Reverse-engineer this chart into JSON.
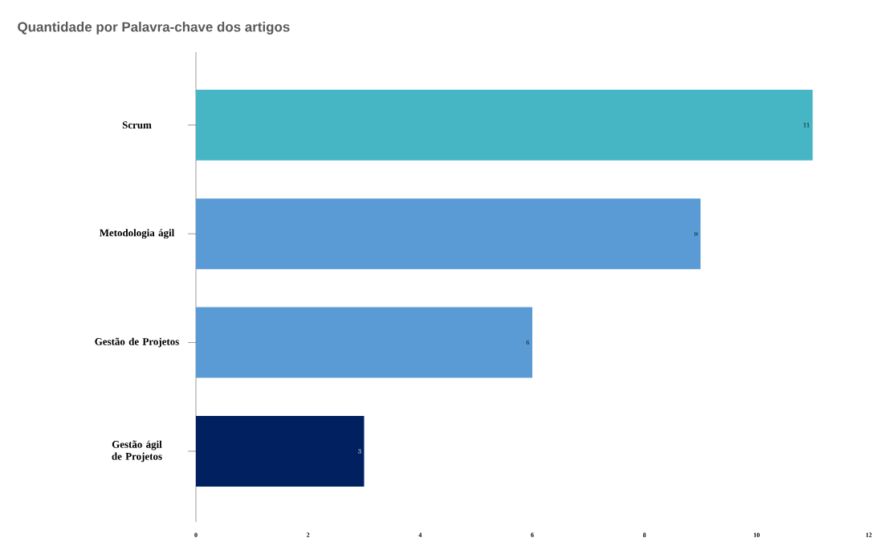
{
  "chart_data": {
    "type": "bar",
    "orientation": "horizontal",
    "title": "Quantidade por Palavra-chave dos artigos",
    "categories": [
      "Scrum",
      "Metodologia ágil",
      "Gestão de Projetos",
      "Gestão ágil de Projetos"
    ],
    "values": [
      11,
      9,
      6,
      3
    ],
    "colors": [
      "#46b5c4",
      "#5b9bd5",
      "#5b9bd5",
      "#002060"
    ],
    "xlim": [
      0,
      12
    ],
    "xticks": [
      0,
      2,
      4,
      6,
      8,
      10,
      12
    ],
    "data_labels": true,
    "grid": false
  }
}
